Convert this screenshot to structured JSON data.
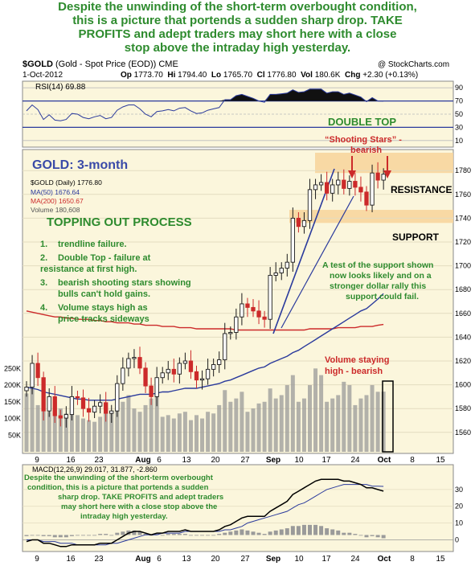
{
  "headline": {
    "lines": [
      "Despite the unwinding of the short-term overbought condition,",
      "this is a picture that portends a sudden sharp drop. TAKE",
      "PROFITS and adept traders may short here with a close",
      "stop above the intraday high yesterday."
    ]
  },
  "header": {
    "symbol": "$GOLD",
    "description": "(Gold - Spot Price (EOD))",
    "exchange": "CME",
    "watermark": "@ StockCharts.com",
    "date": "1-Oct-2012",
    "op_label": "Op",
    "op": "1773.70",
    "hi_label": "Hi",
    "hi": "1794.40",
    "lo_label": "Lo",
    "lo": "1765.70",
    "cl_label": "Cl",
    "cl": "1776.80",
    "vol_label": "Vol",
    "vol": "180.6K",
    "chg_label": "Chg",
    "chg": "+2.30 (+0.13%)"
  },
  "rsi_panel": {
    "label": "RSI(14) 69.88",
    "ticks": [
      90,
      70,
      50,
      30,
      10
    ],
    "annotation": "DOUBLE TOP",
    "fill_color": "#111111",
    "line_color": "#2a3a9c"
  },
  "price_panel": {
    "title": "GOLD: 3-month",
    "legend": [
      {
        "text": "$GOLD (Daily) 1776.80",
        "color": "#000000"
      },
      {
        "text": "MA(50) 1676.64",
        "color": "#2a3a9c"
      },
      {
        "text": "MA(200) 1650.67",
        "color": "#cc2a2a"
      },
      {
        "text": "Volume 180,608",
        "color": "#888888"
      }
    ],
    "price_ticks": [
      "1780",
      "1760",
      "1740",
      "1720",
      "1700",
      "1680",
      "1660",
      "1640",
      "1620",
      "1600",
      "1580",
      "1560"
    ],
    "volume_ticks": [
      "250K",
      "200K",
      "150K",
      "100K",
      "50K"
    ],
    "x_labels": [
      "9",
      "16",
      "23",
      "Aug",
      "6",
      "13",
      "20",
      "27",
      "Sep",
      "10",
      "17",
      "24",
      "Oct",
      "8",
      "15"
    ],
    "x_bold": [
      "Aug",
      "Sep",
      "Oct"
    ],
    "topping_heading": "TOPPING OUT PROCESS",
    "topping_items": [
      {
        "num": "1.",
        "lines": [
          "trendline failure."
        ]
      },
      {
        "num": "2.",
        "lines": [
          "Double Top - failure at",
          "resistance at first high."
        ]
      },
      {
        "num": "3.",
        "lines": [
          "bearish shooting stars showing",
          "bulls can't hold gains."
        ]
      },
      {
        "num": "4.",
        "lines": [
          "Volume stays high as",
          "price tracks sideways"
        ]
      }
    ],
    "shooting_stars": [
      "“Shooting Stars” -",
      "bearish"
    ],
    "resistance_label": "RESISTANCE",
    "support_label": "SUPPORT",
    "support_note": [
      "A test of the support shown",
      "now looks likely and on a",
      "stronger dollar rally this",
      "support could fail."
    ],
    "volume_note": [
      "Volume staying",
      "high - bearish"
    ],
    "colors": {
      "up": "#1a1a1a",
      "down": "#cc2a2a",
      "ma50": "#2a3a9c",
      "ma200": "#cc2a2a",
      "volume": "#9a9a9a",
      "band": "#f7d49a",
      "annotation_green": "#2e8b2e",
      "annotation_red": "#cc2a2a"
    }
  },
  "macd_panel": {
    "label": "MACD(12,26,9) 29.017, 31.877, -2.860",
    "note": [
      "Despite the unwinding of the short-term overbought",
      "condition, this is a picture that portends a sudden",
      "sharp drop. TAKE PROFITS and adept traders",
      "may short here with a close stop above the",
      "intraday high yesterday."
    ],
    "ticks": [
      "30",
      "20",
      "10",
      "0"
    ],
    "x_labels": [
      "9",
      "16",
      "23",
      "Aug",
      "6",
      "13",
      "20",
      "27",
      "Sep",
      "10",
      "17",
      "24",
      "Oct",
      "8",
      "15"
    ]
  },
  "chart_data": {
    "type": "candlestick",
    "title": "GOLD: 3-month",
    "ylim": [
      1545,
      1795
    ],
    "volume_ylim": [
      0,
      270000
    ],
    "categories": [
      "Jul 2",
      "Jul 3",
      "Jul 5",
      "Jul 6",
      "Jul 9",
      "Jul 10",
      "Jul 11",
      "Jul 12",
      "Jul 13",
      "Jul 16",
      "Jul 17",
      "Jul 18",
      "Jul 19",
      "Jul 20",
      "Jul 23",
      "Jul 24",
      "Jul 25",
      "Jul 26",
      "Jul 27",
      "Jul 30",
      "Jul 31",
      "Aug 1",
      "Aug 2",
      "Aug 3",
      "Aug 6",
      "Aug 7",
      "Aug 8",
      "Aug 9",
      "Aug 10",
      "Aug 13",
      "Aug 14",
      "Aug 15",
      "Aug 16",
      "Aug 17",
      "Aug 20",
      "Aug 21",
      "Aug 22",
      "Aug 23",
      "Aug 24",
      "Aug 27",
      "Aug 28",
      "Aug 29",
      "Aug 30",
      "Aug 31",
      "Sep 4",
      "Sep 5",
      "Sep 6",
      "Sep 7",
      "Sep 10",
      "Sep 11",
      "Sep 12",
      "Sep 13",
      "Sep 14",
      "Sep 17",
      "Sep 18",
      "Sep 19",
      "Sep 20",
      "Sep 21",
      "Sep 24",
      "Sep 25",
      "Sep 26",
      "Sep 27",
      "Sep 28",
      "Oct 1"
    ],
    "close": [
      1598,
      1618,
      1606,
      1578,
      1590,
      1574,
      1572,
      1575,
      1590,
      1589,
      1580,
      1577,
      1582,
      1585,
      1576,
      1578,
      1601,
      1614,
      1622,
      1623,
      1614,
      1599,
      1590,
      1606,
      1610,
      1613,
      1609,
      1618,
      1620,
      1611,
      1604,
      1605,
      1613,
      1617,
      1621,
      1643,
      1644,
      1657,
      1668,
      1665,
      1662,
      1657,
      1655,
      1692,
      1694,
      1698,
      1703,
      1740,
      1733,
      1738,
      1764,
      1768,
      1770,
      1761,
      1768,
      1772,
      1765,
      1771,
      1766,
      1762,
      1751,
      1778,
      1772,
      1777
    ],
    "ma50": [
      1598,
      1597,
      1596,
      1594,
      1593,
      1592,
      1591,
      1590,
      1589,
      1588,
      1588,
      1587,
      1587,
      1587,
      1587,
      1587,
      1588,
      1589,
      1590,
      1591,
      1592,
      1592,
      1592,
      1593,
      1594,
      1594,
      1595,
      1596,
      1597,
      1597,
      1597,
      1598,
      1599,
      1600,
      1601,
      1603,
      1604,
      1606,
      1608,
      1610,
      1612,
      1614,
      1615,
      1618,
      1620,
      1622,
      1624,
      1627,
      1629,
      1632,
      1635,
      1638,
      1641,
      1644,
      1647,
      1650,
      1653,
      1656,
      1659,
      1662,
      1664,
      1668,
      1672,
      1676.64
    ],
    "ma200": [
      1662,
      1661,
      1660,
      1659,
      1658,
      1657,
      1657,
      1656,
      1656,
      1655,
      1655,
      1655,
      1654,
      1654,
      1653,
      1653,
      1652,
      1652,
      1652,
      1651,
      1651,
      1650,
      1650,
      1650,
      1649,
      1649,
      1649,
      1648,
      1648,
      1648,
      1647,
      1647,
      1647,
      1647,
      1647,
      1647,
      1647,
      1646,
      1646,
      1646,
      1646,
      1646,
      1646,
      1646,
      1646,
      1646,
      1646,
      1646,
      1646,
      1646,
      1647,
      1647,
      1647,
      1647,
      1647,
      1648,
      1648,
      1648,
      1648,
      1649,
      1649,
      1649,
      1650,
      1650.67
    ],
    "volume": [
      175000,
      210000,
      140000,
      160000,
      120000,
      150000,
      130000,
      115000,
      125000,
      110000,
      100000,
      95000,
      90000,
      105000,
      115000,
      120000,
      135000,
      150000,
      170000,
      130000,
      120000,
      140000,
      160000,
      200000,
      105000,
      110000,
      100000,
      115000,
      120000,
      95000,
      110000,
      100000,
      120000,
      115000,
      140000,
      185000,
      150000,
      160000,
      180000,
      120000,
      130000,
      145000,
      150000,
      190000,
      160000,
      170000,
      200000,
      230000,
      150000,
      160000,
      200000,
      250000,
      230000,
      150000,
      160000,
      170000,
      210000,
      200000,
      140000,
      160000,
      170000,
      200000,
      180000,
      180608
    ],
    "rsi": [
      55,
      64,
      57,
      42,
      49,
      41,
      40,
      42,
      51,
      50,
      45,
      43,
      46,
      48,
      43,
      45,
      56,
      61,
      64,
      64,
      58,
      50,
      46,
      54,
      55,
      57,
      55,
      59,
      60,
      55,
      51,
      52,
      56,
      58,
      60,
      72,
      72,
      78,
      80,
      77,
      74,
      70,
      68,
      80,
      80,
      81,
      82,
      87,
      83,
      84,
      88,
      88,
      88,
      82,
      84,
      84,
      80,
      82,
      79,
      76,
      69,
      75,
      70,
      69.88
    ],
    "macd": [
      -1,
      0,
      0,
      -2,
      -2,
      -3,
      -4,
      -4,
      -3,
      -3,
      -3,
      -3,
      -3,
      -2,
      -2,
      -2,
      0,
      2,
      4,
      5,
      5,
      4,
      3,
      4,
      4,
      5,
      5,
      5,
      6,
      5,
      5,
      5,
      5,
      5,
      6,
      8,
      9,
      11,
      13,
      14,
      14,
      14,
      14,
      17,
      19,
      21,
      23,
      27,
      29,
      31,
      33,
      35,
      36,
      36,
      36,
      36,
      35,
      35,
      34,
      33,
      31,
      31,
      30,
      29.017
    ],
    "signal": [
      0,
      0,
      0,
      -1,
      -1,
      -1,
      -2,
      -2,
      -2,
      -3,
      -3,
      -3,
      -3,
      -3,
      -3,
      -2,
      -2,
      -1,
      0,
      1,
      2,
      3,
      3,
      3,
      4,
      4,
      4,
      4,
      5,
      5,
      5,
      5,
      5,
      5,
      5,
      6,
      6,
      7,
      8,
      10,
      11,
      12,
      13,
      14,
      15,
      16,
      17,
      19,
      21,
      22,
      24,
      26,
      28,
      30,
      31,
      32,
      33,
      33,
      33,
      33,
      33,
      32,
      32,
      31.877
    ],
    "histogram": [
      -1,
      0,
      0,
      -1,
      -1,
      -2,
      -2,
      -2,
      -1,
      0,
      0,
      0,
      0,
      1,
      1,
      0,
      2,
      3,
      4,
      4,
      3,
      1,
      0,
      1,
      0,
      1,
      1,
      1,
      1,
      0,
      0,
      0,
      0,
      0,
      1,
      2,
      3,
      4,
      5,
      4,
      3,
      2,
      1,
      3,
      4,
      5,
      6,
      8,
      8,
      9,
      9,
      9,
      8,
      6,
      5,
      4,
      2,
      2,
      1,
      0,
      -2,
      -1,
      -2,
      -2.86
    ],
    "macd_ylim": [
      -6,
      40
    ],
    "rsi_ylim": [
      0,
      100
    ],
    "resistance_zone": [
      1778,
      1795
    ],
    "support_zone": [
      1736,
      1747
    ]
  }
}
